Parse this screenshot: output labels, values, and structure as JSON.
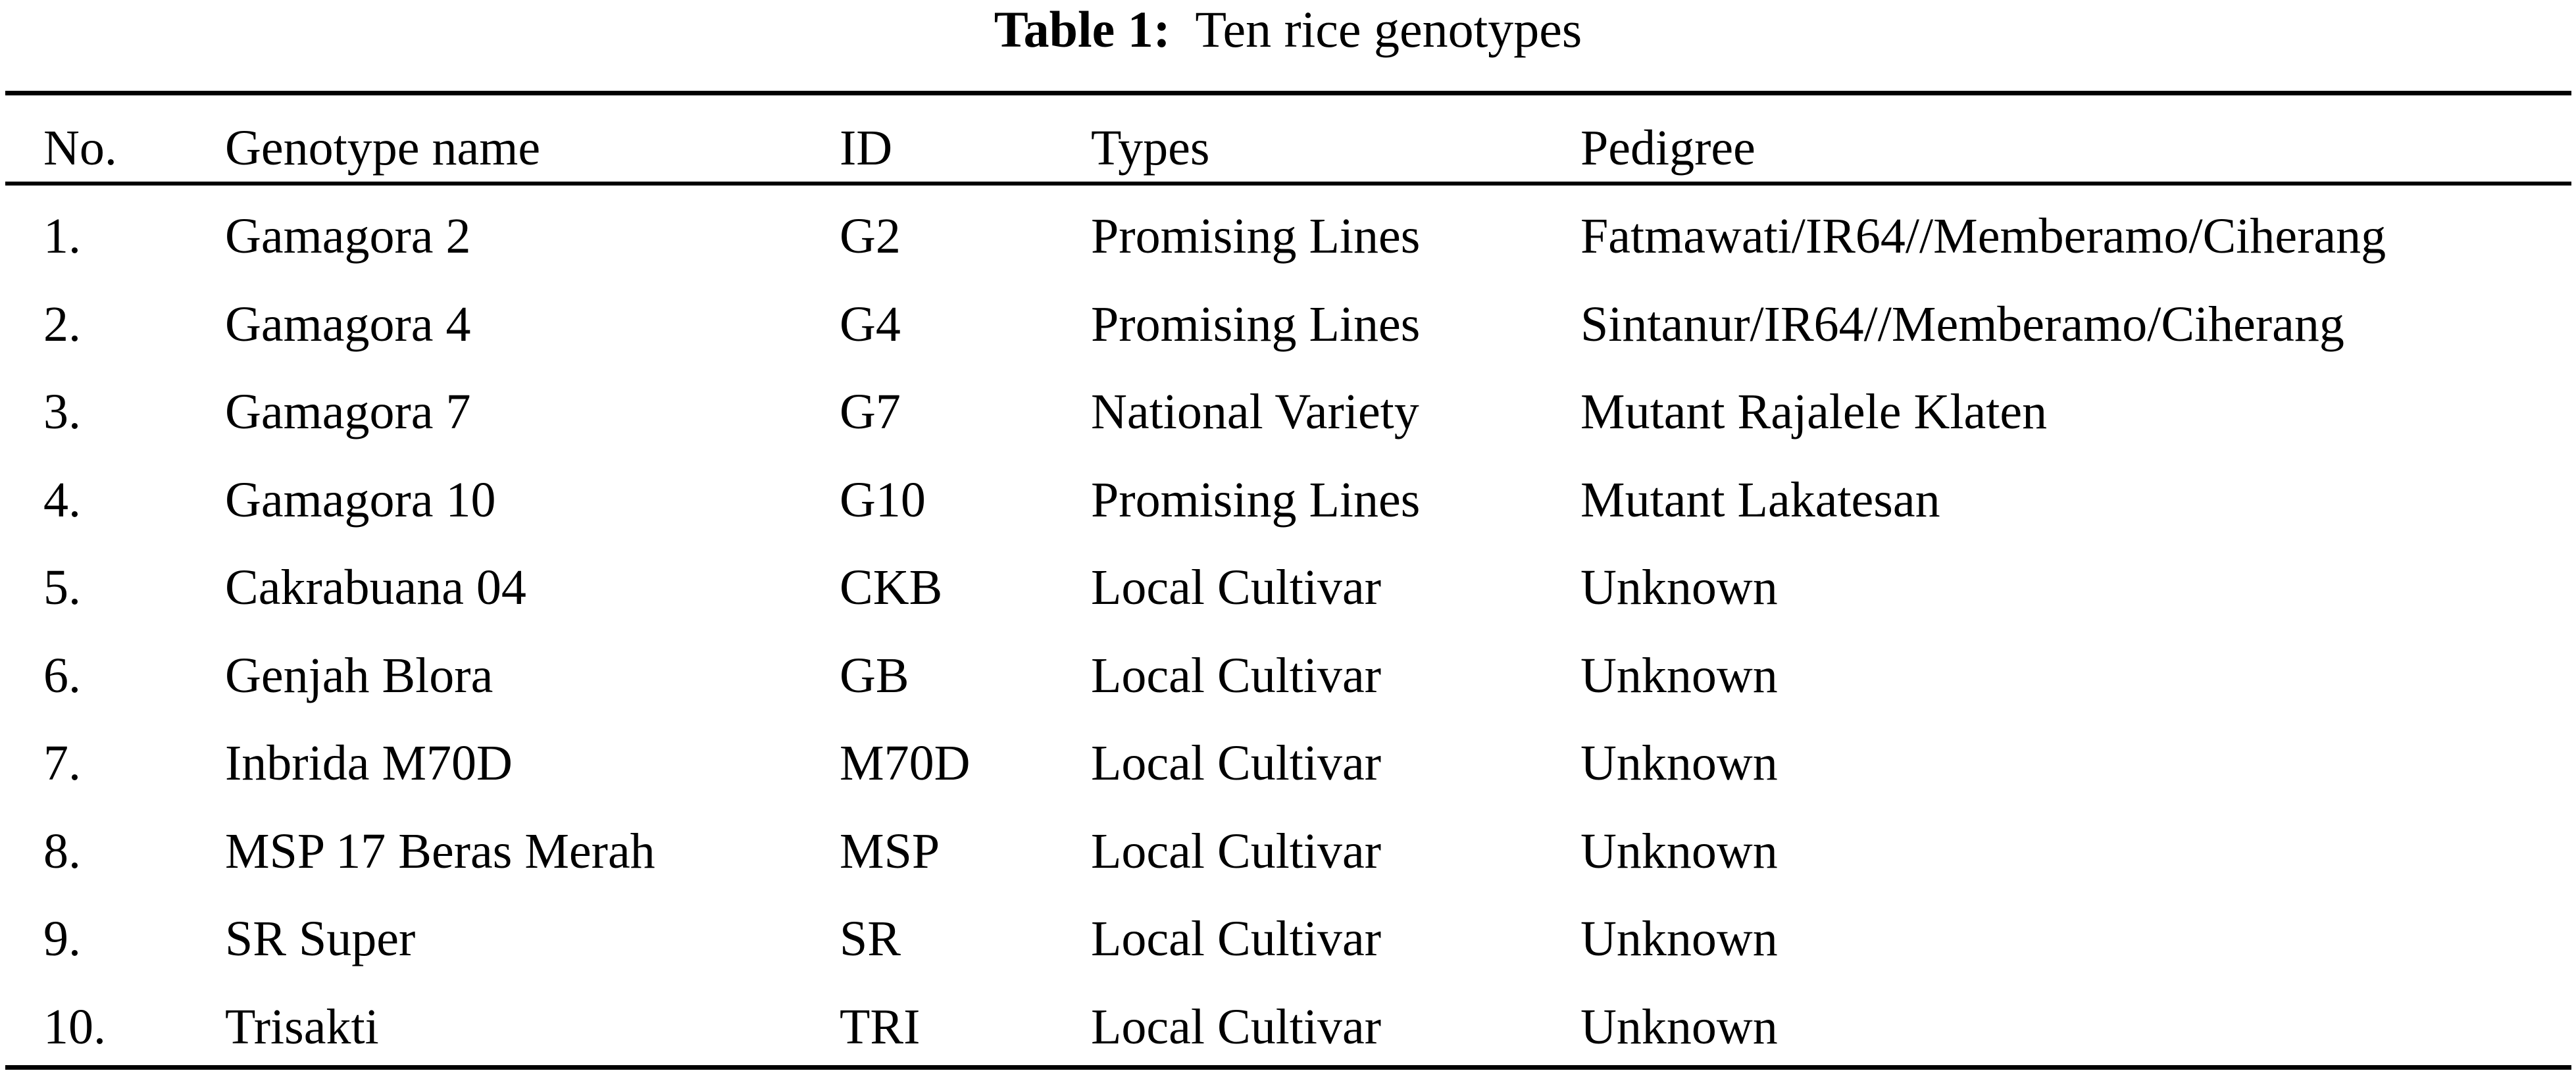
{
  "caption": {
    "label": "Table 1:",
    "text": "Ten rice genotypes"
  },
  "table": {
    "headers": [
      "No.",
      "Genotype name",
      "ID",
      "Types",
      "Pedigree"
    ],
    "rows": [
      [
        "1.",
        "Gamagora 2",
        "G2",
        "Promising Lines",
        "Fatmawati/IR64//Memberamo/Ciherang"
      ],
      [
        "2.",
        "Gamagora 4",
        "G4",
        "Promising Lines",
        "Sintanur/IR64//Memberamo/Ciherang"
      ],
      [
        "3.",
        "Gamagora 7",
        "G7",
        "National Variety",
        "Mutant Rajalele Klaten"
      ],
      [
        "4.",
        "Gamagora 10",
        "G10",
        "Promising Lines",
        "Mutant Lakatesan"
      ],
      [
        "5.",
        "Cakrabuana 04",
        "CKB",
        "Local Cultivar",
        "Unknown"
      ],
      [
        "6.",
        "Genjah Blora",
        "GB",
        "Local Cultivar",
        "Unknown"
      ],
      [
        "7.",
        "Inbrida M70D",
        "M70D",
        "Local Cultivar",
        "Unknown"
      ],
      [
        "8.",
        "MSP 17 Beras Merah",
        "MSP",
        "Local Cultivar",
        "Unknown"
      ],
      [
        "9.",
        "SR Super",
        "SR",
        "Local Cultivar",
        "Unknown"
      ],
      [
        "10.",
        "Trisakti",
        "TRI",
        "Local Cultivar",
        "Unknown"
      ]
    ]
  }
}
